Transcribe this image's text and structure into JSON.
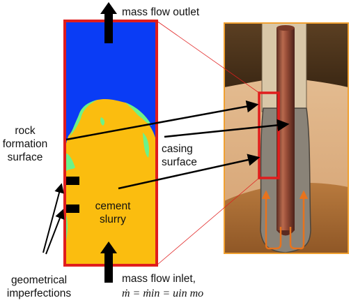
{
  "labels": {
    "outlet": "mass flow outlet",
    "rock_line1": "rock",
    "rock_line2": "formation",
    "rock_line3": "surface",
    "casing_line1": "casing",
    "casing_line2": "surface",
    "cement_line1": "cement",
    "cement_line2": "slurry",
    "geom_line1": "geometrical",
    "geom_line2": "imperfections",
    "inlet": "mass flow inlet,",
    "inlet_formula": "ṁ = ṁin = uin mo"
  },
  "colors": {
    "simulation_border": "#e01d1d",
    "blue_region": "#0a3cf5",
    "cement_fill": "#fbbd0f",
    "interface_green": "#6cf28a",
    "wellbore_border": "#f0a030",
    "arrow": "#000000",
    "flow_arrow": "#e8731c"
  }
}
